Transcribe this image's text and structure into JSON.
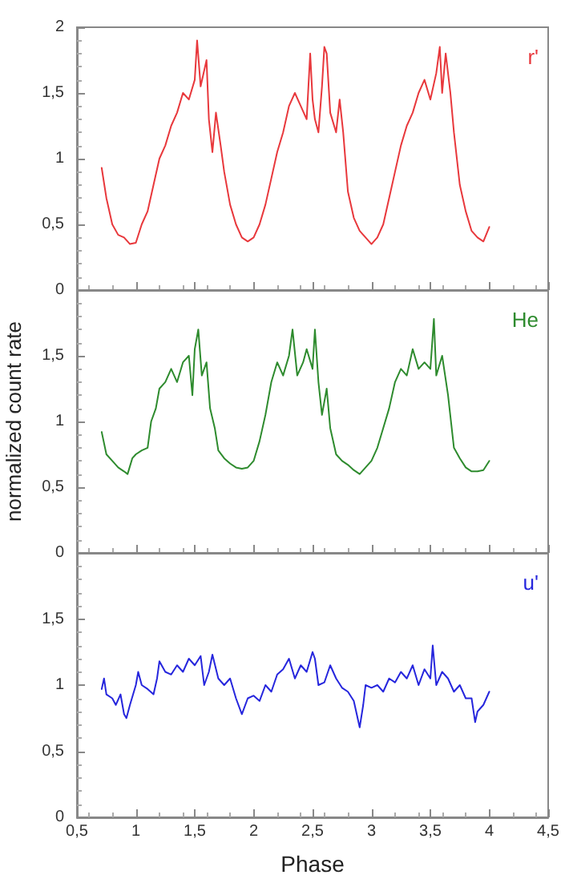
{
  "chart_data": [
    {
      "type": "line",
      "marker": "none",
      "tick_labels": "y",
      "xlim": [
        0.5,
        4.5
      ],
      "xticks": [
        0.5,
        1,
        1.5,
        2,
        2.5,
        3,
        3.5,
        4,
        4.5
      ],
      "ylim": [
        0,
        2
      ],
      "yticks": [
        0,
        {
          "value": 0.5,
          "label": "0,5"
        },
        1,
        {
          "value": 1.5,
          "label": "1,5"
        },
        2
      ],
      "series": [
        {
          "name": "r'",
          "color": "#e8383c",
          "x": [
            0.71,
            0.75,
            0.8,
            0.85,
            0.9,
            0.95,
            1.0,
            1.05,
            1.1,
            1.15,
            1.2,
            1.25,
            1.3,
            1.35,
            1.4,
            1.45,
            1.5,
            1.52,
            1.55,
            1.6,
            1.62,
            1.65,
            1.68,
            1.72,
            1.75,
            1.8,
            1.85,
            1.9,
            1.95,
            2.0,
            2.05,
            2.1,
            2.15,
            2.2,
            2.25,
            2.3,
            2.35,
            2.4,
            2.45,
            2.48,
            2.5,
            2.52,
            2.55,
            2.58,
            2.6,
            2.62,
            2.65,
            2.7,
            2.73,
            2.76,
            2.8,
            2.85,
            2.9,
            2.95,
            3.0,
            3.05,
            3.1,
            3.15,
            3.2,
            3.25,
            3.3,
            3.35,
            3.4,
            3.45,
            3.5,
            3.55,
            3.58,
            3.6,
            3.63,
            3.67,
            3.7,
            3.75,
            3.8,
            3.85,
            3.9,
            3.95,
            4.0
          ],
          "values": [
            0.93,
            0.7,
            0.5,
            0.42,
            0.4,
            0.35,
            0.36,
            0.5,
            0.6,
            0.8,
            1.0,
            1.1,
            1.25,
            1.35,
            1.5,
            1.45,
            1.6,
            1.9,
            1.55,
            1.75,
            1.3,
            1.05,
            1.35,
            1.1,
            0.9,
            0.65,
            0.5,
            0.4,
            0.37,
            0.4,
            0.5,
            0.65,
            0.85,
            1.05,
            1.2,
            1.4,
            1.5,
            1.4,
            1.3,
            1.8,
            1.45,
            1.3,
            1.2,
            1.55,
            1.85,
            1.8,
            1.35,
            1.2,
            1.45,
            1.2,
            0.75,
            0.55,
            0.45,
            0.4,
            0.35,
            0.4,
            0.5,
            0.7,
            0.9,
            1.1,
            1.25,
            1.35,
            1.5,
            1.6,
            1.45,
            1.65,
            1.85,
            1.5,
            1.8,
            1.5,
            1.2,
            0.8,
            0.6,
            0.45,
            0.4,
            0.37,
            0.48
          ]
        }
      ]
    },
    {
      "type": "line",
      "marker": "none",
      "tick_labels": "y",
      "ylabel": "normalized count rate",
      "xlim": [
        0.5,
        4.5
      ],
      "xticks": [
        0.5,
        1,
        1.5,
        2,
        2.5,
        3,
        3.5,
        4,
        4.5
      ],
      "ylim": [
        0,
        2
      ],
      "yticks": [
        0,
        {
          "value": 0.5,
          "label": "0,5"
        },
        1,
        {
          "value": 1.5,
          "label": "1,5"
        },
        {
          "value": 2,
          "label": null
        }
      ],
      "series": [
        {
          "name": "He",
          "color": "#2e8b2e",
          "x": [
            0.71,
            0.75,
            0.8,
            0.85,
            0.9,
            0.93,
            0.97,
            1.0,
            1.05,
            1.1,
            1.13,
            1.17,
            1.2,
            1.25,
            1.3,
            1.35,
            1.4,
            1.45,
            1.48,
            1.5,
            1.53,
            1.56,
            1.6,
            1.63,
            1.67,
            1.7,
            1.75,
            1.8,
            1.85,
            1.9,
            1.95,
            2.0,
            2.05,
            2.1,
            2.15,
            2.2,
            2.25,
            2.3,
            2.33,
            2.37,
            2.42,
            2.45,
            2.5,
            2.52,
            2.55,
            2.58,
            2.62,
            2.65,
            2.7,
            2.75,
            2.8,
            2.85,
            2.9,
            2.95,
            3.0,
            3.05,
            3.1,
            3.15,
            3.2,
            3.25,
            3.3,
            3.35,
            3.4,
            3.45,
            3.5,
            3.53,
            3.55,
            3.6,
            3.65,
            3.7,
            3.75,
            3.8,
            3.85,
            3.9,
            3.95,
            4.0
          ],
          "values": [
            0.92,
            0.75,
            0.7,
            0.65,
            0.62,
            0.6,
            0.72,
            0.75,
            0.78,
            0.8,
            1.0,
            1.1,
            1.25,
            1.3,
            1.4,
            1.3,
            1.45,
            1.5,
            1.2,
            1.55,
            1.7,
            1.35,
            1.45,
            1.1,
            0.95,
            0.78,
            0.72,
            0.68,
            0.65,
            0.64,
            0.65,
            0.7,
            0.85,
            1.05,
            1.3,
            1.45,
            1.35,
            1.5,
            1.7,
            1.35,
            1.45,
            1.55,
            1.4,
            1.7,
            1.3,
            1.05,
            1.25,
            0.95,
            0.75,
            0.7,
            0.67,
            0.63,
            0.6,
            0.65,
            0.7,
            0.8,
            0.95,
            1.1,
            1.3,
            1.4,
            1.35,
            1.55,
            1.4,
            1.45,
            1.4,
            1.78,
            1.35,
            1.5,
            1.2,
            0.8,
            0.72,
            0.65,
            0.62,
            0.62,
            0.63,
            0.7
          ]
        }
      ]
    },
    {
      "type": "line",
      "marker": "none",
      "xlabel": "Phase",
      "xlim": [
        0.5,
        4.5
      ],
      "xticks": [
        {
          "value": 0.5,
          "label": "0,5"
        },
        1,
        {
          "value": 1.5,
          "label": "1,5"
        },
        2,
        {
          "value": 2.5,
          "label": "2,5"
        },
        3,
        {
          "value": 3.5,
          "label": "3,5"
        },
        4,
        {
          "value": 4.5,
          "label": "4,5"
        }
      ],
      "ylim": [
        0,
        2
      ],
      "yticks": [
        0,
        {
          "value": 0.5,
          "label": "0,5"
        },
        1,
        {
          "value": 1.5,
          "label": "1,5"
        },
        {
          "value": 2,
          "label": null
        }
      ],
      "series": [
        {
          "name": "u'",
          "color": "#2626dd",
          "x": [
            0.71,
            0.73,
            0.75,
            0.8,
            0.83,
            0.87,
            0.9,
            0.92,
            0.95,
            1.0,
            1.02,
            1.05,
            1.1,
            1.15,
            1.18,
            1.2,
            1.25,
            1.3,
            1.35,
            1.4,
            1.45,
            1.5,
            1.55,
            1.58,
            1.62,
            1.65,
            1.7,
            1.75,
            1.8,
            1.85,
            1.9,
            1.95,
            2.0,
            2.05,
            2.1,
            2.15,
            2.2,
            2.25,
            2.3,
            2.35,
            2.4,
            2.45,
            2.5,
            2.52,
            2.55,
            2.6,
            2.65,
            2.7,
            2.75,
            2.8,
            2.85,
            2.9,
            2.93,
            2.95,
            3.0,
            3.05,
            3.1,
            3.15,
            3.2,
            3.25,
            3.3,
            3.35,
            3.4,
            3.45,
            3.5,
            3.52,
            3.55,
            3.6,
            3.65,
            3.7,
            3.75,
            3.8,
            3.85,
            3.88,
            3.9,
            3.95,
            4.0
          ],
          "values": [
            0.97,
            1.05,
            0.93,
            0.9,
            0.85,
            0.93,
            0.78,
            0.75,
            0.85,
            1.0,
            1.1,
            1.0,
            0.97,
            0.93,
            1.05,
            1.18,
            1.1,
            1.08,
            1.15,
            1.1,
            1.2,
            1.15,
            1.22,
            1.0,
            1.1,
            1.23,
            1.05,
            1.0,
            1.05,
            0.9,
            0.78,
            0.9,
            0.92,
            0.88,
            1.0,
            0.95,
            1.08,
            1.12,
            1.2,
            1.05,
            1.15,
            1.1,
            1.25,
            1.2,
            1.0,
            1.02,
            1.15,
            1.05,
            0.98,
            0.95,
            0.88,
            0.68,
            0.85,
            1.0,
            0.98,
            1.0,
            0.95,
            1.05,
            1.02,
            1.1,
            1.05,
            1.15,
            1.0,
            1.12,
            1.05,
            1.3,
            1.0,
            1.1,
            1.05,
            0.95,
            1.0,
            0.9,
            0.9,
            0.72,
            0.8,
            0.85,
            0.95
          ]
        }
      ]
    }
  ]
}
